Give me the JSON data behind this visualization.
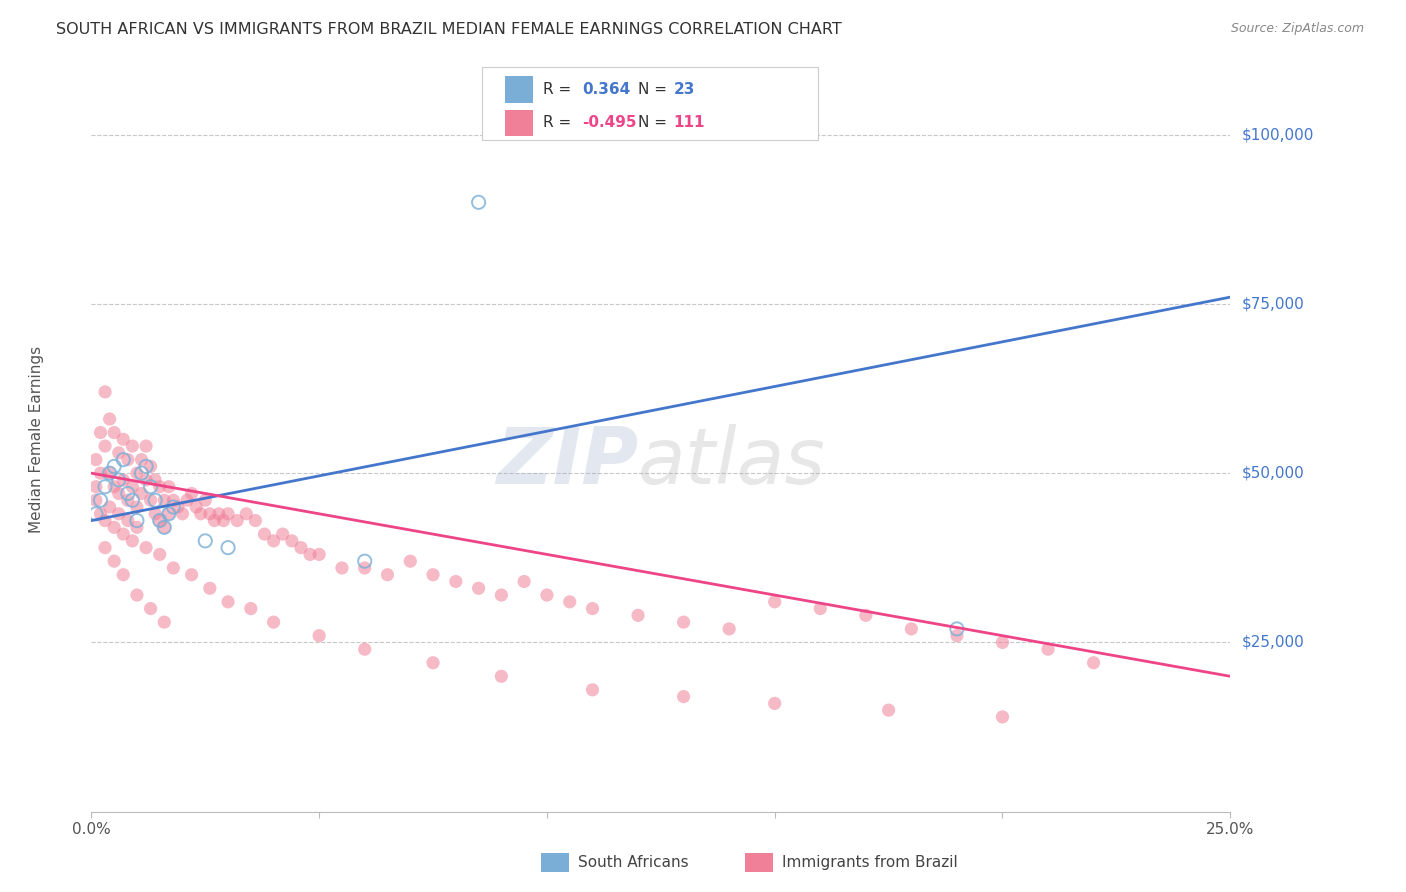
{
  "title": "SOUTH AFRICAN VS IMMIGRANTS FROM BRAZIL MEDIAN FEMALE EARNINGS CORRELATION CHART",
  "source": "Source: ZipAtlas.com",
  "ylabel": "Median Female Earnings",
  "xlim": [
    0.0,
    0.25
  ],
  "ylim": [
    0,
    110000
  ],
  "background_color": "#ffffff",
  "grid_color": "#c8c8c8",
  "blue_scatter_color": "#7aaed6",
  "pink_scatter_color": "#f08098",
  "blue_line_color": "#4477cc",
  "pink_line_color": "#ee4488",
  "right_label_color": "#4477cc",
  "blue_scatter_x": [
    0.001,
    0.002,
    0.003,
    0.004,
    0.005,
    0.006,
    0.007,
    0.008,
    0.009,
    0.01,
    0.011,
    0.012,
    0.013,
    0.014,
    0.015,
    0.016,
    0.017,
    0.018,
    0.025,
    0.03,
    0.06,
    0.085,
    0.19
  ],
  "blue_scatter_y": [
    44000,
    46000,
    48000,
    50000,
    51000,
    49000,
    52000,
    47000,
    46000,
    43000,
    50000,
    51000,
    48000,
    46000,
    43000,
    42000,
    44000,
    45000,
    40000,
    39000,
    37000,
    90000,
    27000
  ],
  "pink_scatter_x": [
    0.001,
    0.001,
    0.002,
    0.002,
    0.003,
    0.003,
    0.004,
    0.004,
    0.005,
    0.005,
    0.006,
    0.006,
    0.007,
    0.007,
    0.008,
    0.008,
    0.009,
    0.009,
    0.01,
    0.01,
    0.011,
    0.011,
    0.012,
    0.012,
    0.013,
    0.013,
    0.014,
    0.014,
    0.015,
    0.015,
    0.016,
    0.016,
    0.017,
    0.017,
    0.018,
    0.019,
    0.02,
    0.021,
    0.022,
    0.023,
    0.024,
    0.025,
    0.026,
    0.027,
    0.028,
    0.029,
    0.03,
    0.032,
    0.034,
    0.036,
    0.038,
    0.04,
    0.042,
    0.044,
    0.046,
    0.048,
    0.05,
    0.055,
    0.06,
    0.065,
    0.07,
    0.075,
    0.08,
    0.085,
    0.09,
    0.095,
    0.1,
    0.105,
    0.11,
    0.12,
    0.13,
    0.14,
    0.15,
    0.16,
    0.17,
    0.18,
    0.19,
    0.2,
    0.21,
    0.22,
    0.001,
    0.002,
    0.003,
    0.004,
    0.005,
    0.006,
    0.007,
    0.008,
    0.009,
    0.01,
    0.012,
    0.015,
    0.018,
    0.022,
    0.026,
    0.03,
    0.035,
    0.04,
    0.05,
    0.06,
    0.075,
    0.09,
    0.11,
    0.13,
    0.15,
    0.175,
    0.2,
    0.003,
    0.005,
    0.007,
    0.01,
    0.013,
    0.016
  ],
  "pink_scatter_y": [
    52000,
    48000,
    56000,
    50000,
    62000,
    54000,
    58000,
    50000,
    56000,
    48000,
    53000,
    47000,
    55000,
    49000,
    52000,
    46000,
    54000,
    48000,
    50000,
    45000,
    52000,
    47000,
    54000,
    49000,
    51000,
    46000,
    49000,
    44000,
    48000,
    43000,
    46000,
    42000,
    48000,
    44000,
    46000,
    45000,
    44000,
    46000,
    47000,
    45000,
    44000,
    46000,
    44000,
    43000,
    44000,
    43000,
    44000,
    43000,
    44000,
    43000,
    41000,
    40000,
    41000,
    40000,
    39000,
    38000,
    38000,
    36000,
    36000,
    35000,
    37000,
    35000,
    34000,
    33000,
    32000,
    34000,
    32000,
    31000,
    30000,
    29000,
    28000,
    27000,
    31000,
    30000,
    29000,
    27000,
    26000,
    25000,
    24000,
    22000,
    46000,
    44000,
    43000,
    45000,
    42000,
    44000,
    41000,
    43000,
    40000,
    42000,
    39000,
    38000,
    36000,
    35000,
    33000,
    31000,
    30000,
    28000,
    26000,
    24000,
    22000,
    20000,
    18000,
    17000,
    16000,
    15000,
    14000,
    39000,
    37000,
    35000,
    32000,
    30000,
    28000
  ],
  "blue_line_endpoints_x": [
    0.0,
    0.25
  ],
  "blue_line_endpoints_y": [
    43000,
    76000
  ],
  "pink_line_endpoints_x": [
    0.0,
    0.25
  ],
  "pink_line_endpoints_y": [
    50000,
    20000
  ]
}
